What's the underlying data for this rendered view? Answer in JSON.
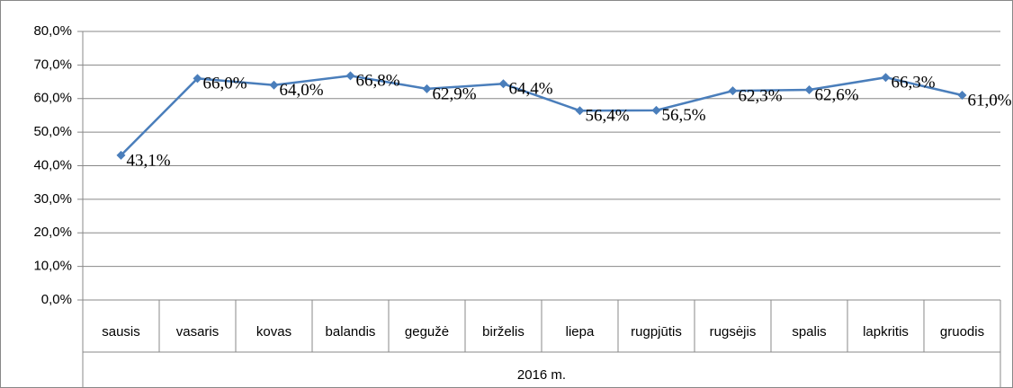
{
  "chart_data": {
    "type": "line",
    "categories": [
      "sausis",
      "vasaris",
      "kovas",
      "balandis",
      "gegužė",
      "birželis",
      "liepa",
      "rugpjūtis",
      "rugsėjis",
      "spalis",
      "lapkritis",
      "gruodis"
    ],
    "x_label": "2016 m.",
    "series": [
      {
        "color": "#4a7ebb",
        "values": [
          43.1,
          66.0,
          64.0,
          66.8,
          62.9,
          64.4,
          56.4,
          56.5,
          62.3,
          62.6,
          66.3,
          61.0
        ],
        "value_labels": [
          "43,1%",
          "66,0%",
          "64,0%",
          "66,8%",
          "62,9%",
          "64,4%",
          "56,4%",
          "56,5%",
          "62,3%",
          "62,6%",
          "66,3%",
          "61,0%"
        ]
      }
    ],
    "ylim": [
      0,
      80
    ],
    "yticks": [
      {
        "value": 0,
        "label": "0,0%"
      },
      {
        "value": 10,
        "label": "10,0%"
      },
      {
        "value": 20,
        "label": "20,0%"
      },
      {
        "value": 30,
        "label": "30,0%"
      },
      {
        "value": 40,
        "label": "40,0%"
      },
      {
        "value": 50,
        "label": "50,0%"
      },
      {
        "value": 60,
        "label": "60,0%"
      },
      {
        "value": 70,
        "label": "70,0%"
      },
      {
        "value": 80,
        "label": "80,0%"
      }
    ],
    "grid": true
  }
}
